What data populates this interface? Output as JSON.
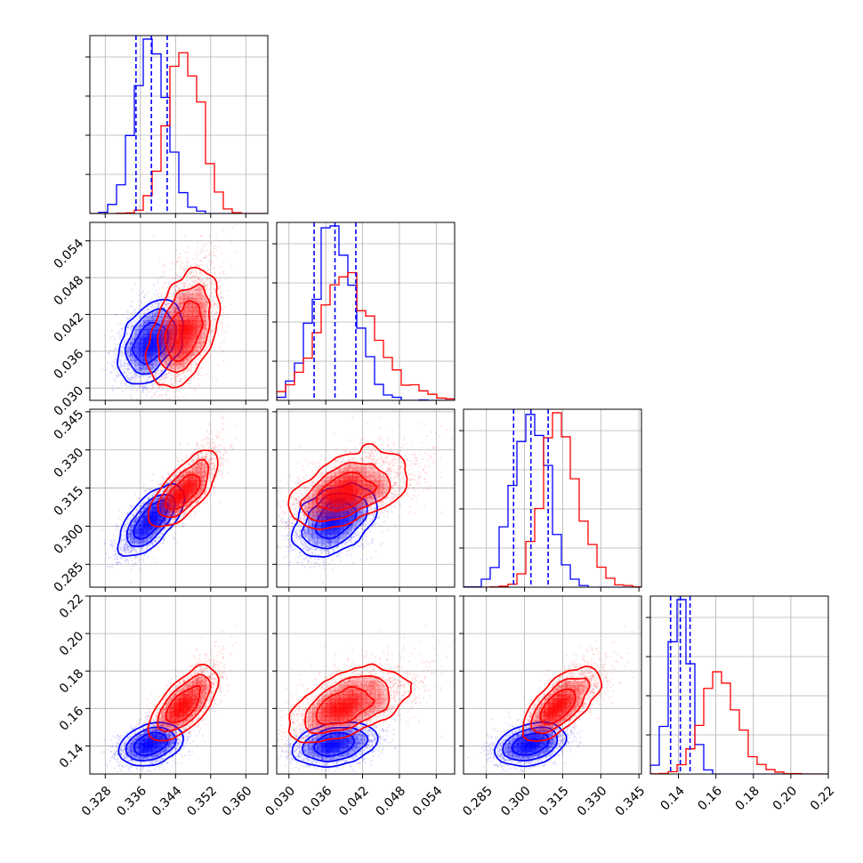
{
  "chart_data": {
    "type": "corner",
    "title": "",
    "parameters": [
      {
        "name": "",
        "range": [
          0.3245,
          0.365
        ],
        "ticks": [
          0.328,
          0.336,
          0.344,
          0.352,
          0.36
        ],
        "tick_labels": [
          "0.328",
          "0.336",
          "0.344",
          "0.352",
          "0.360"
        ]
      },
      {
        "name": "",
        "range": [
          0.028,
          0.057
        ],
        "ticks": [
          0.03,
          0.036,
          0.042,
          0.048,
          0.054
        ],
        "tick_labels": [
          "0.030",
          "0.036",
          "0.042",
          "0.048",
          "0.054"
        ]
      },
      {
        "name": "",
        "range": [
          0.276,
          0.346
        ],
        "ticks": [
          0.285,
          0.3,
          0.315,
          0.33,
          0.345
        ],
        "tick_labels": [
          "0.285",
          "0.300",
          "0.315",
          "0.330",
          "0.345"
        ]
      },
      {
        "name": "",
        "range": [
          0.125,
          0.22
        ],
        "ticks": [
          0.14,
          0.16,
          0.18,
          0.2,
          0.22
        ],
        "tick_labels": [
          "0.14",
          "0.16",
          "0.18",
          "0.20",
          "0.22"
        ]
      }
    ],
    "series": [
      {
        "name": "",
        "color": "#0000ff",
        "mean": [
          0.3385,
          0.0375,
          0.3025,
          0.141
        ],
        "sd": [
          0.0036,
          0.0034,
          0.0068,
          0.0052
        ],
        "corr": [
          [
            1,
            0.35,
            0.7,
            0.3
          ],
          [
            0.35,
            1,
            0.4,
            0.3
          ],
          [
            0.7,
            0.4,
            1,
            0.35
          ],
          [
            0.3,
            0.3,
            0.35,
            1
          ]
        ],
        "quantiles_16_50_84": [
          [
            0.335,
            0.3385,
            0.3421
          ],
          [
            0.0341,
            0.0375,
            0.0409
          ],
          [
            0.2957,
            0.3025,
            0.3093
          ],
          [
            0.1358,
            0.141,
            0.1462
          ]
        ]
      },
      {
        "name": "",
        "color": "#ff0000",
        "mean": [
          0.346,
          0.0395,
          0.314,
          0.162
        ],
        "sd": [
          0.0038,
          0.0045,
          0.0068,
          0.009
        ],
        "corr": [
          [
            1,
            0.45,
            0.75,
            0.7
          ],
          [
            0.45,
            1,
            0.5,
            0.55
          ],
          [
            0.75,
            0.5,
            1,
            0.7
          ],
          [
            0.7,
            0.55,
            0.7,
            1
          ]
        ]
      }
    ],
    "quantile_lines_series": "blue",
    "grid": true,
    "legend": "none"
  }
}
